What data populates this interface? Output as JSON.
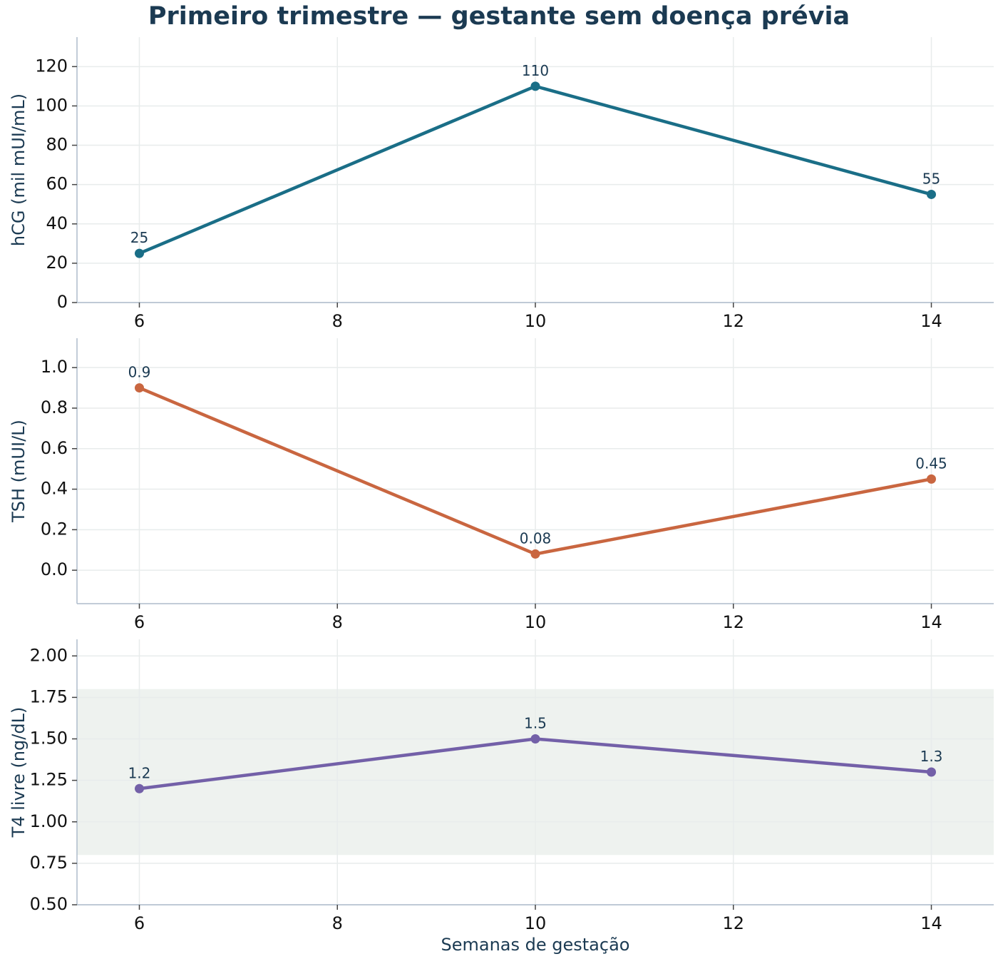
{
  "chart_data": {
    "title": "Primeiro trimestre — gestante sem doença prévia",
    "xlabel": "Semanas de gestação",
    "panels": [
      {
        "type": "line",
        "ylabel": "hCG (mil mUI/mL)",
        "color": "#1a6e87",
        "x": [
          6,
          10,
          14
        ],
        "y": [
          25,
          110,
          55
        ],
        "labels": [
          "25",
          "110",
          "55"
        ],
        "ylim": [
          0,
          135
        ],
        "yticks": [
          0,
          20,
          40,
          60,
          80,
          100,
          120
        ],
        "ytick_labels": [
          "0",
          "20",
          "40",
          "60",
          "80",
          "100",
          "120"
        ]
      },
      {
        "type": "line",
        "ylabel": "TSH (mUI/L)",
        "color": "#c96640",
        "x": [
          6,
          10,
          14
        ],
        "y": [
          0.9,
          0.08,
          0.45
        ],
        "labels": [
          "0.9",
          "0.08",
          "0.45"
        ],
        "ylim": [
          -0.165,
          1.145
        ],
        "yticks": [
          0.0,
          0.2,
          0.4,
          0.6,
          0.8,
          1.0
        ],
        "ytick_labels": [
          "0.0",
          "0.2",
          "0.4",
          "0.6",
          "0.8",
          "1.0"
        ]
      },
      {
        "type": "line",
        "ylabel": "T4 livre (ng/dL)",
        "color": "#7360a8",
        "x": [
          6,
          10,
          14
        ],
        "y": [
          1.2,
          1.5,
          1.3
        ],
        "labels": [
          "1.2",
          "1.5",
          "1.3"
        ],
        "ylim": [
          0.5,
          2.1
        ],
        "yticks": [
          0.5,
          0.75,
          1.0,
          1.25,
          1.5,
          1.75,
          2.0
        ],
        "ytick_labels": [
          "0.50",
          "0.75",
          "1.00",
          "1.25",
          "1.50",
          "1.75",
          "2.00"
        ],
        "reference_band": [
          0.8,
          1.8
        ],
        "reference_band_color": "#eef2ef"
      }
    ],
    "xlim": [
      5.37,
      14.63
    ],
    "xticks": [
      6,
      8,
      10,
      12,
      14
    ],
    "xtick_labels": [
      "6",
      "8",
      "10",
      "12",
      "14"
    ],
    "grid": true,
    "gridline_color": "#e8ecec",
    "axis_color": "#aebccb"
  }
}
